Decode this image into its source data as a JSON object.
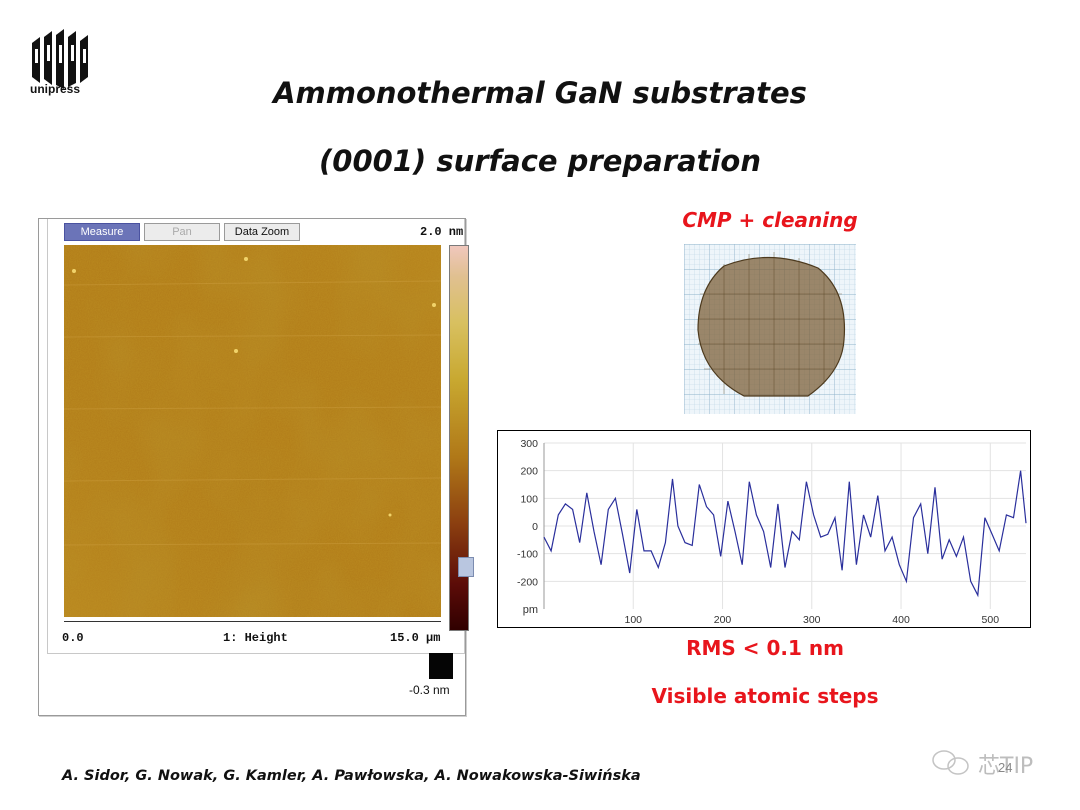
{
  "logo": {
    "text": "unipress"
  },
  "slide": {
    "title_line1": "Ammonothermal GaN substrates",
    "title_line2": "(0001) surface preparation",
    "authors": "A. Sidor, G. Nowak, G. Kamler, A. Pawłowska, A. Nowakowska-Siwińska",
    "page_number": "24"
  },
  "afm": {
    "toolbar": {
      "measure": "Measure",
      "pan": "Pan",
      "zoom": "Data Zoom"
    },
    "scale_max": "2.0 nm",
    "scale_min": "-0.3 nm",
    "x_min": "0.0",
    "x_label": "1: Height",
    "x_max": "15.0 µm"
  },
  "captions": {
    "cmp": "CMP + cleaning",
    "rms": "RMS < 0.1 nm",
    "steps": "Visible atomic steps"
  },
  "watermark": {
    "text": "芯TIP"
  },
  "chart_data": {
    "type": "line",
    "title": "",
    "xlabel": "",
    "ylabel": "pm",
    "xlim": [
      0,
      540
    ],
    "ylim": [
      -300,
      300
    ],
    "x_ticks": [
      100,
      200,
      300,
      400,
      500
    ],
    "y_ticks": [
      300,
      200,
      100,
      0,
      -100,
      -200
    ],
    "grid": true,
    "line_color": "#2a2f9c",
    "x": [
      0,
      8,
      16,
      24,
      32,
      40,
      48,
      56,
      64,
      72,
      80,
      88,
      96,
      104,
      112,
      120,
      128,
      136,
      144,
      150,
      158,
      166,
      174,
      182,
      190,
      198,
      206,
      214,
      222,
      230,
      238,
      246,
      254,
      262,
      270,
      278,
      286,
      294,
      302,
      310,
      318,
      326,
      334,
      342,
      350,
      358,
      366,
      374,
      382,
      390,
      398,
      406,
      414,
      422,
      430,
      438,
      446,
      454,
      462,
      470,
      478,
      486,
      494,
      502,
      510,
      518,
      526,
      534,
      540
    ],
    "series": [
      {
        "values": [
          -40,
          -90,
          40,
          80,
          60,
          -60,
          120,
          -20,
          -140,
          60,
          100,
          -30,
          -170,
          60,
          -90,
          -90,
          -150,
          -60,
          170,
          0,
          -60,
          -70,
          150,
          70,
          40,
          -110,
          90,
          -20,
          -140,
          160,
          40,
          -20,
          -150,
          80,
          -150,
          -20,
          -50,
          160,
          40,
          -40,
          -30,
          30,
          -160,
          160,
          -140,
          40,
          -40,
          110,
          -90,
          -40,
          -140,
          -200,
          30,
          80,
          -100,
          140,
          -120,
          -50,
          -110,
          -40,
          -200,
          -250,
          30,
          -30,
          -90,
          40,
          30,
          200,
          10
        ]
      }
    ]
  }
}
